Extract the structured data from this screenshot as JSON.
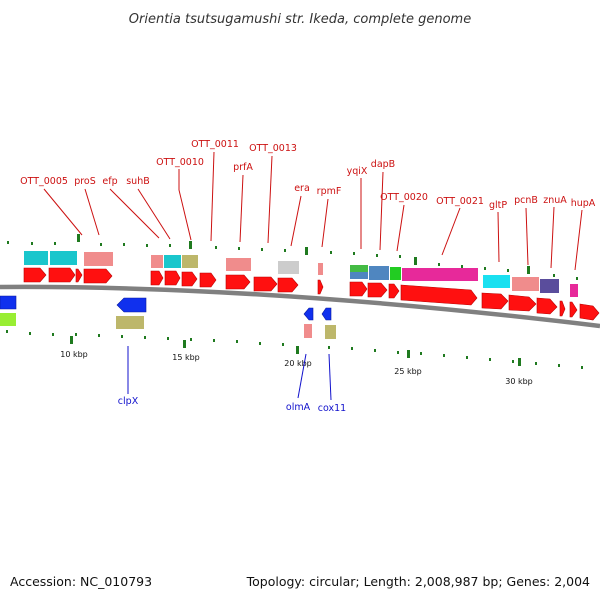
{
  "title": "Orientia tsutsugamushi str. Ikeda, complete genome",
  "footer": {
    "accession": "Accession: NC_010793",
    "summary": "Topology: circular; Length: 2,008,987 bp; Genes: 2,004"
  },
  "colors": {
    "forward_label": "#cc1111",
    "reverse_label": "#1111cc",
    "tick": "#1f7a1f",
    "backbone": "#808080"
  },
  "ticks": [
    {
      "label": "10 kbp"
    },
    {
      "label": "15 kbp"
    },
    {
      "label": "20 kbp"
    },
    {
      "label": "25 kbp"
    },
    {
      "label": "30 kbp"
    }
  ],
  "forward_labels": [
    {
      "text": "OTT_0005",
      "color": "#cc1111"
    },
    {
      "text": "proS",
      "color": "#cc1111"
    },
    {
      "text": "efp",
      "color": "#cc1111"
    },
    {
      "text": "suhB",
      "color": "#cc1111"
    },
    {
      "text": "OTT_0010",
      "color": "#cc1111"
    },
    {
      "text": "OTT_0011",
      "color": "#cc1111"
    },
    {
      "text": "prfA",
      "color": "#cc1111"
    },
    {
      "text": "OTT_0013",
      "color": "#cc1111"
    },
    {
      "text": "era",
      "color": "#cc1111"
    },
    {
      "text": "rpmF",
      "color": "#cc1111"
    },
    {
      "text": "yqiX",
      "color": "#cc1111"
    },
    {
      "text": "dapB",
      "color": "#cc1111"
    },
    {
      "text": "OTT_0020",
      "color": "#cc1111"
    },
    {
      "text": "OTT_0021",
      "color": "#cc1111"
    },
    {
      "text": "gltP",
      "color": "#cc1111"
    },
    {
      "text": "pcnB",
      "color": "#cc1111"
    },
    {
      "text": "znuA",
      "color": "#cc1111"
    },
    {
      "text": "hupA",
      "color": "#cc1111"
    }
  ],
  "reverse_labels": [
    {
      "text": "clpX",
      "color": "#1111cc"
    },
    {
      "text": "olmA",
      "color": "#1111cc"
    },
    {
      "text": "cox11",
      "color": "#1111cc"
    }
  ]
}
